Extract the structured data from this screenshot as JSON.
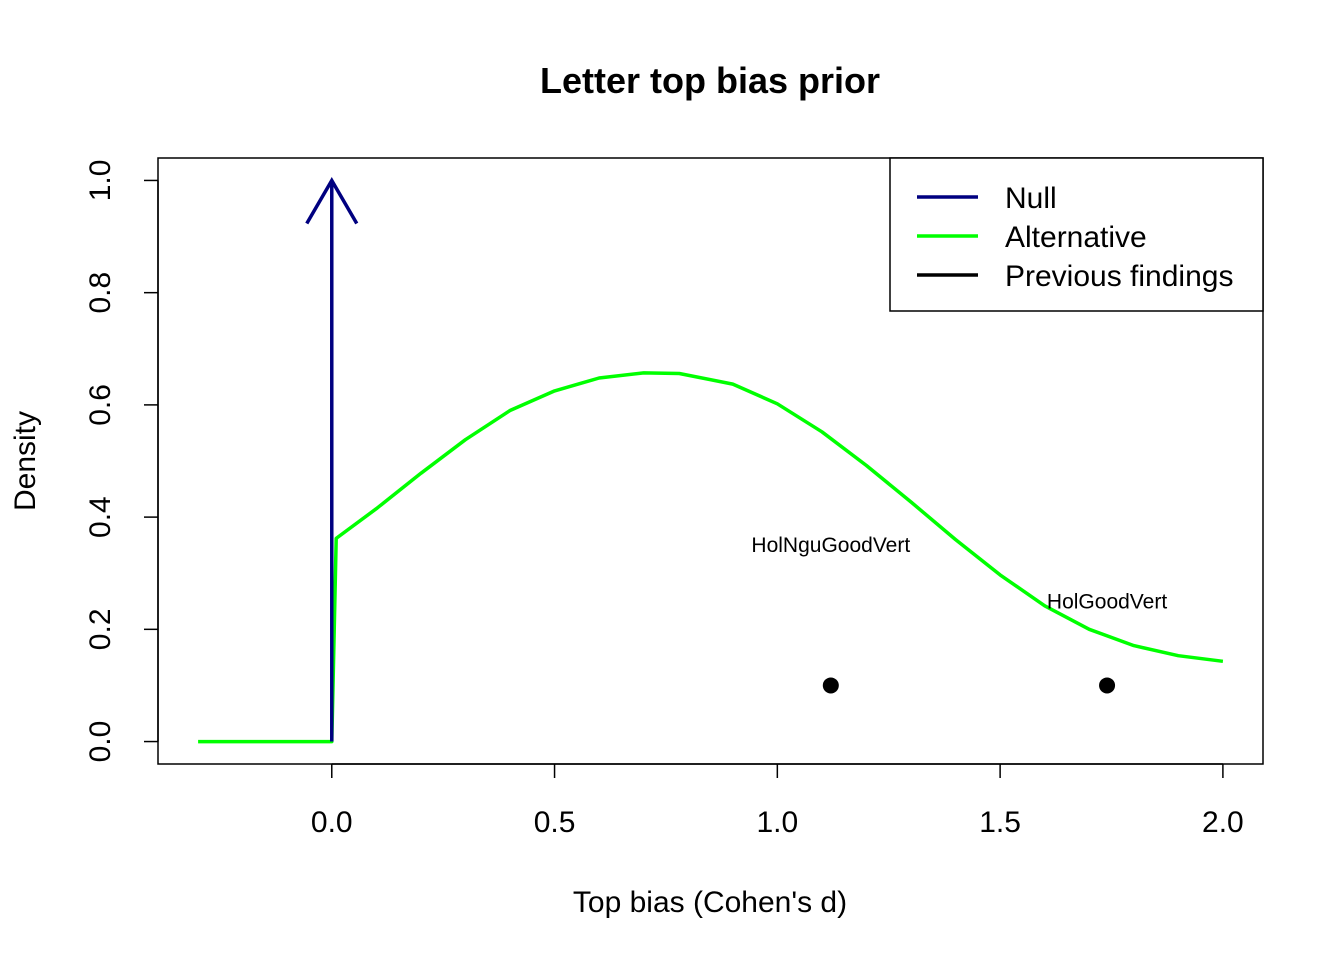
{
  "chart_data": {
    "type": "line",
    "title": "Letter top bias prior",
    "xlabel": "Top bias (Cohen's d)",
    "ylabel": "Density",
    "xlim": [
      -0.39,
      2.09
    ],
    "ylim": [
      -0.04,
      1.04
    ],
    "x_ticks": [
      0.0,
      0.5,
      1.0,
      1.5,
      2.0
    ],
    "x_tick_labels": [
      "0.0",
      "0.5",
      "1.0",
      "1.5",
      "2.0"
    ],
    "y_ticks": [
      0.0,
      0.2,
      0.4,
      0.6,
      0.8,
      1.0
    ],
    "y_tick_labels": [
      "0.0",
      "0.2",
      "0.4",
      "0.6",
      "0.8",
      "1.0"
    ],
    "legend_position": "top-right",
    "legend": [
      {
        "label": "Null",
        "color": "#000080"
      },
      {
        "label": "Alternative",
        "color": "#00ff00"
      },
      {
        "label": "Previous findings",
        "color": "#000000"
      }
    ],
    "null_spike": {
      "x": 0.0,
      "y": 1.0,
      "color": "#000080"
    },
    "alternative_curve": {
      "color": "#00ff00",
      "x": [
        -0.3,
        -0.2,
        -0.1,
        0.0,
        0.0,
        0.01,
        0.1,
        0.2,
        0.3,
        0.4,
        0.5,
        0.6,
        0.7,
        0.78,
        0.9,
        1.0,
        1.1,
        1.2,
        1.3,
        1.4,
        1.5,
        1.6,
        1.7,
        1.8,
        1.9,
        2.0
      ],
      "y": [
        0.0,
        0.0,
        0.0,
        0.0,
        0.0,
        0.362,
        0.415,
        0.478,
        0.538,
        0.59,
        0.625,
        0.648,
        0.657,
        0.656,
        0.637,
        0.602,
        0.552,
        0.492,
        0.427,
        0.36,
        0.297,
        0.242,
        0.2,
        0.171,
        0.153,
        0.143
      ]
    },
    "previous_findings": [
      {
        "label": "HolNguGoodVert",
        "x": 1.12,
        "y": 0.1,
        "label_y": 0.35
      },
      {
        "label": "HolGoodVert",
        "x": 1.74,
        "y": 0.1,
        "label_y": 0.25
      }
    ]
  }
}
